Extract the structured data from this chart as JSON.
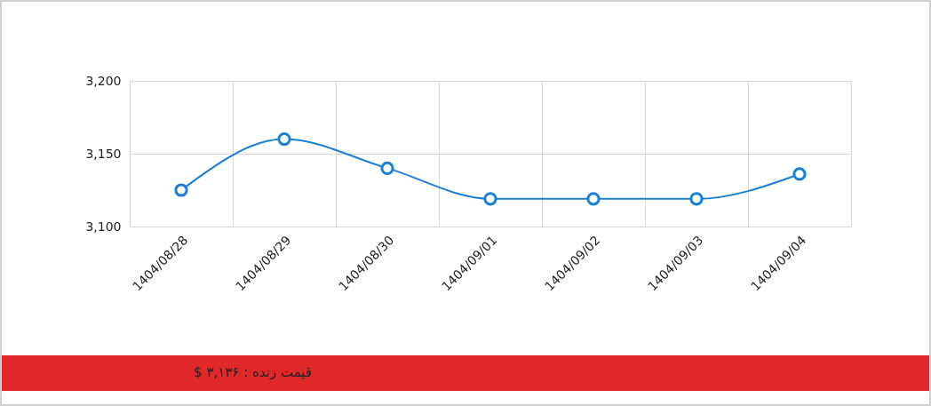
{
  "chart_data": {
    "type": "line",
    "categories": [
      "1404/08/28",
      "1404/08/29",
      "1404/08/30",
      "1404/09/01",
      "1404/09/02",
      "1404/09/03",
      "1404/09/04"
    ],
    "series": [
      {
        "color": "#1a7fd6",
        "values": [
          3125,
          3160,
          3140,
          3119,
          3119,
          3119,
          3136
        ]
      }
    ],
    "ylim": [
      3100,
      3200
    ],
    "yticks": [
      {
        "value": 3100,
        "label": "3,100"
      },
      {
        "value": 3150,
        "label": "3,150"
      },
      {
        "value": 3200,
        "label": "3,200"
      }
    ],
    "grid": true,
    "marker": "circle",
    "annotations": [
      "قیمت زنده : ۳,۱۳۶ $"
    ]
  }
}
